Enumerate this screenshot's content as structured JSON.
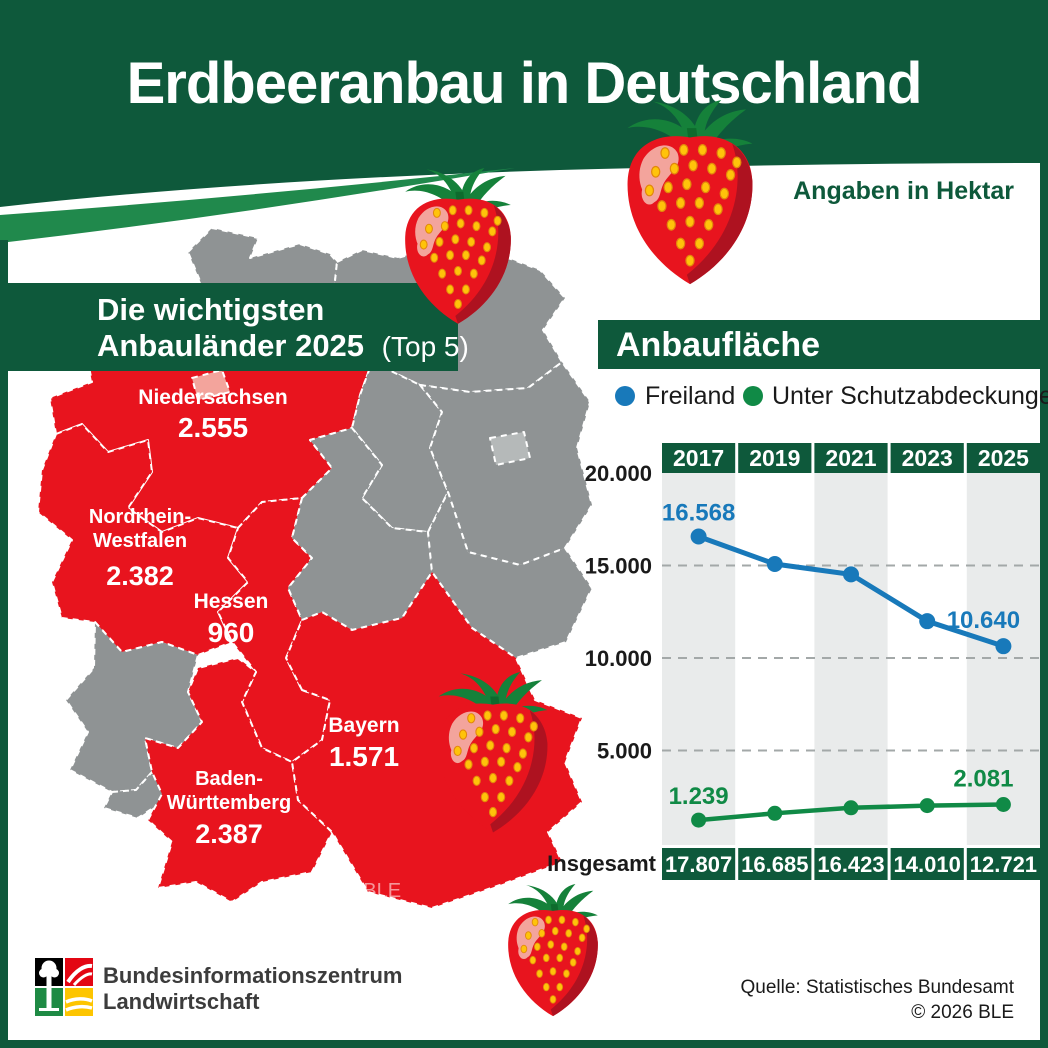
{
  "header": {
    "title": "Erdbeeranbau in Deutschland",
    "unit_note": "Angaben in Hektar"
  },
  "map_section": {
    "banner_line1": "Die wichtigsten",
    "banner_line2": "Anbauländer 2025",
    "banner_suffix": "(Top 5)",
    "watermark": "© BLE",
    "states": [
      {
        "name_lines": [
          "Niedersachsen"
        ],
        "value": "2.555"
      },
      {
        "name_lines": [
          "Nordrhein-",
          "Westfalen"
        ],
        "value": "2.382"
      },
      {
        "name_lines": [
          "Hessen"
        ],
        "value": "960"
      },
      {
        "name_lines": [
          "Bayern"
        ],
        "value": "1.571"
      },
      {
        "name_lines": [
          "Baden-",
          "Württemberg"
        ],
        "value": "2.387"
      }
    ]
  },
  "chart_section": {
    "banner": "Anbaufläche",
    "legend": [
      {
        "label": "Freiland",
        "color": "#1879ba"
      },
      {
        "label": "Unter Schutzabdeckungen",
        "color": "#108a46"
      }
    ]
  },
  "chart_data": {
    "type": "line",
    "categories": [
      "2017",
      "2019",
      "2021",
      "2023",
      "2025"
    ],
    "series": [
      {
        "name": "Freiland",
        "color": "#1879ba",
        "values": [
          16568,
          15080,
          14520,
          11990,
          10640
        ],
        "point_labels": {
          "first": "16.568",
          "last": "10.640"
        }
      },
      {
        "name": "Unter Schutzabdeckungen",
        "color": "#108a46",
        "values": [
          1239,
          1605,
          1903,
          2020,
          2081
        ],
        "point_labels": {
          "first": "1.239",
          "last": "2.081"
        }
      }
    ],
    "totals_row": {
      "label": "Insgesamt",
      "values": [
        "17.807",
        "16.685",
        "16.423",
        "14.010",
        "12.721"
      ]
    },
    "yticks": [
      {
        "label": "20.000",
        "value": 20000
      },
      {
        "label": "15.000",
        "value": 15000
      },
      {
        "label": "10.000",
        "value": 10000
      },
      {
        "label": "5.000",
        "value": 5000
      }
    ],
    "ylim": [
      0,
      20000
    ],
    "grid": "dashed-horizontal",
    "legend_position": "top"
  },
  "footer": {
    "org_line1": "Bundesinformationszentrum",
    "org_line2": "Landwirtschaft",
    "source": "Quelle: Statistisches Bundesamt",
    "copyright": "© 2026 BLE"
  },
  "colors": {
    "dark_green": "#0e593b",
    "swoosh_green": "#20894c",
    "red": "#e8141e",
    "bremen_red": "#f3a49c",
    "gray": "#8f9394",
    "berlin_gray": "#b5b9b9",
    "stripe": "#e9ebeb",
    "blue": "#1879ba",
    "line_green": "#108a46",
    "yellow_seed": "#ffc30a"
  }
}
